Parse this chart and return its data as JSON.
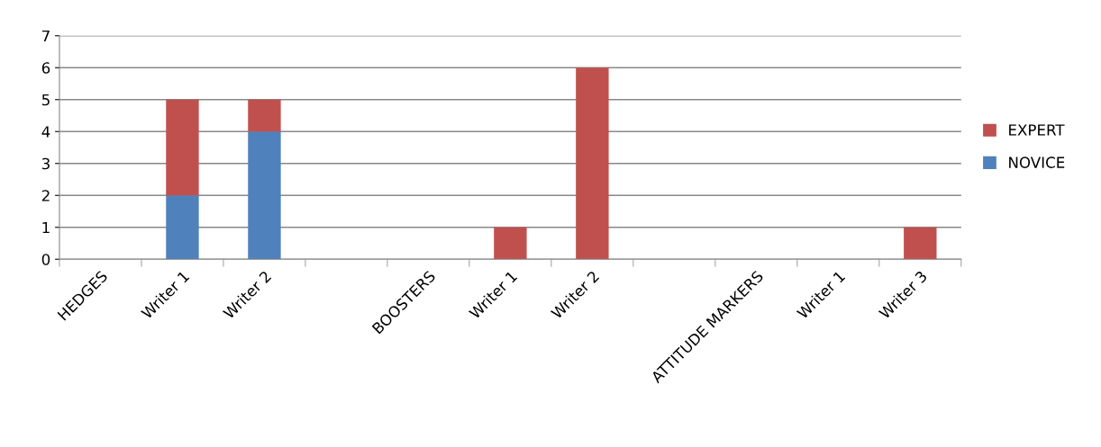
{
  "chart_data": {
    "type": "bar",
    "stacked": true,
    "categories": [
      "HEDGES",
      "Writer 1",
      "Writer 2",
      null,
      "BOOSTERS",
      "Writer 1",
      "Writer 2",
      null,
      "ATTITUDE MARKERS",
      "Writer 1",
      "Writer 3"
    ],
    "series": [
      {
        "name": "NOVICE",
        "color": "#4f81bd",
        "values": [
          0,
          2,
          4,
          0,
          0,
          0,
          0,
          0,
          0,
          0,
          0
        ]
      },
      {
        "name": "EXPERT",
        "color": "#c0504d",
        "values": [
          0,
          3,
          1,
          0,
          0,
          1,
          6,
          0,
          0,
          0,
          1
        ]
      }
    ],
    "ylim": [
      0,
      7
    ],
    "yticks": [
      0,
      1,
      2,
      3,
      4,
      5,
      6,
      7
    ],
    "grid": "y",
    "legend": "right"
  }
}
